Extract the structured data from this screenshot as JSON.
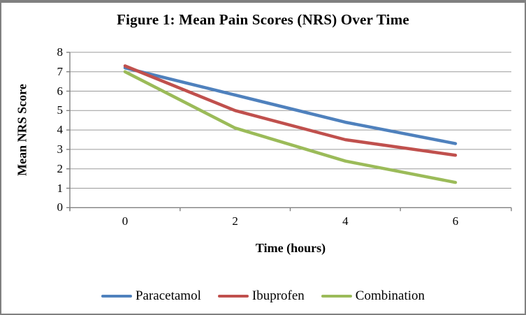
{
  "chart_data": {
    "type": "line",
    "title": "Figure 1: Mean Pain Scores (NRS) Over Time",
    "xlabel": "Time (hours)",
    "ylabel": "Mean NRS Score",
    "categories": [
      0,
      2,
      4,
      6
    ],
    "x_tick_labels": [
      "0",
      "2",
      "4",
      "6"
    ],
    "y_ticks": [
      0,
      1,
      2,
      3,
      4,
      5,
      6,
      7,
      8
    ],
    "ylim": [
      0,
      8
    ],
    "grid": "horizontal",
    "legend_position": "bottom",
    "series": [
      {
        "name": "Paracetamol",
        "color": "#4F81BD",
        "values": [
          7.2,
          5.8,
          4.4,
          3.3
        ]
      },
      {
        "name": "Ibuprofen",
        "color": "#C0504D",
        "values": [
          7.3,
          5.0,
          3.5,
          2.7
        ]
      },
      {
        "name": "Combination",
        "color": "#9BBB59",
        "values": [
          7.0,
          4.1,
          2.4,
          1.3
        ]
      }
    ]
  },
  "colors": {
    "background": "#FFFFFF",
    "border": "#808080",
    "axis": "#808080",
    "gridline": "#9A9A9A",
    "text": "#000000"
  }
}
